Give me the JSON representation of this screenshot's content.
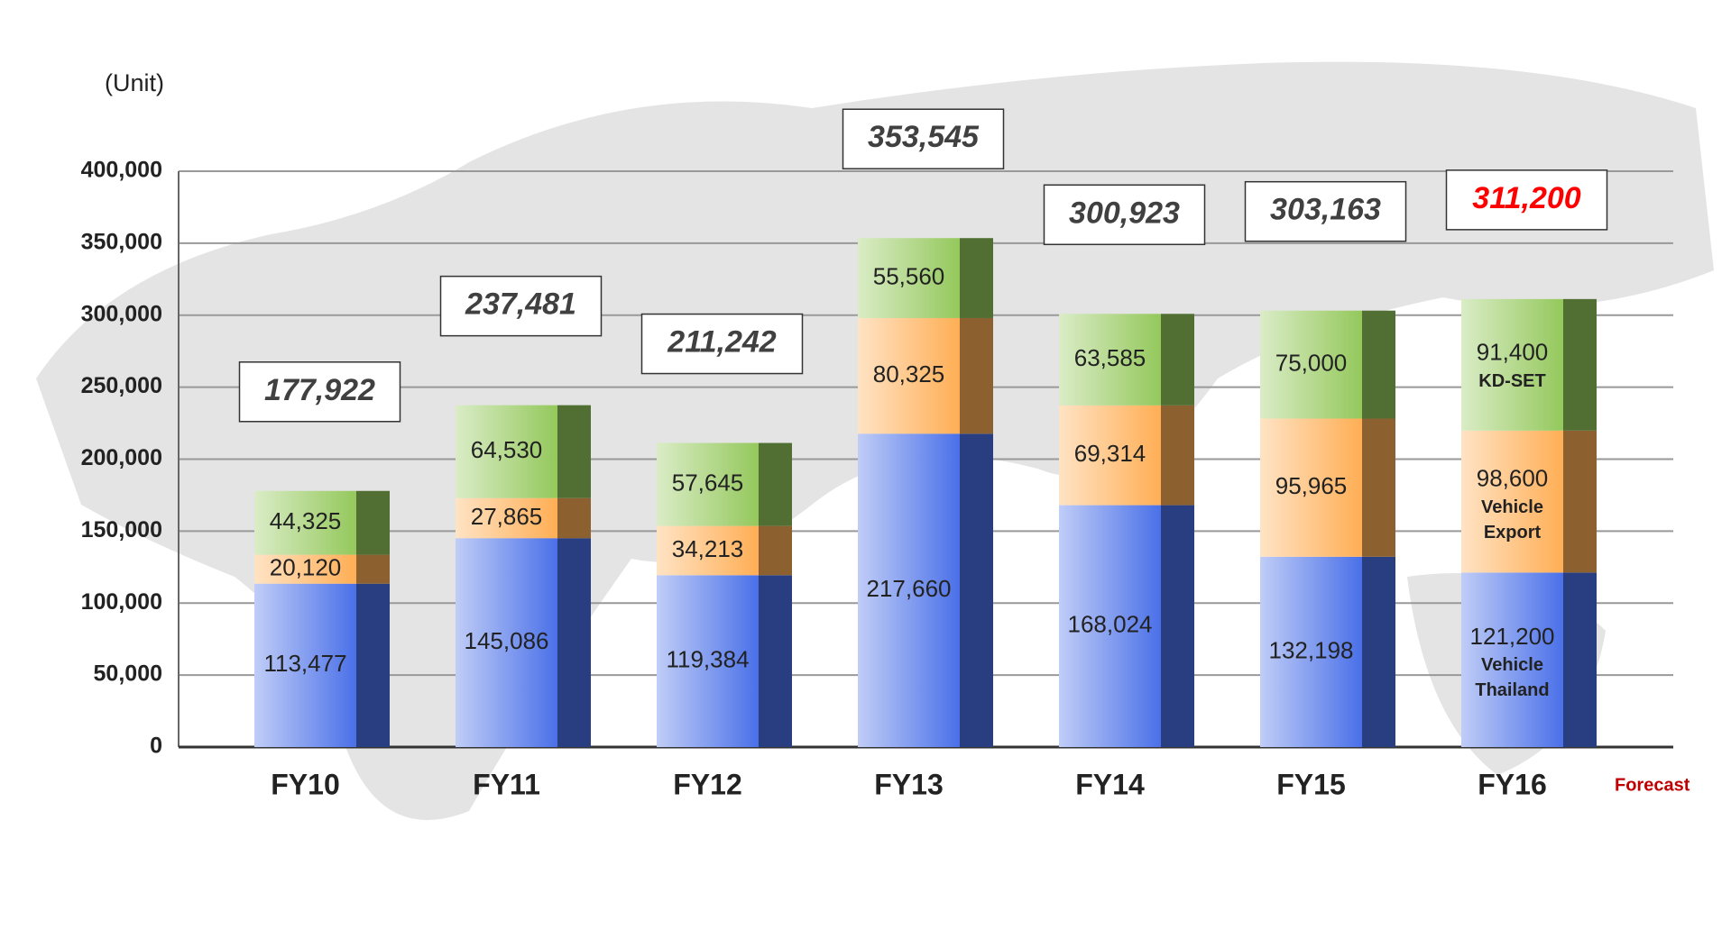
{
  "chart_data": {
    "type": "bar",
    "stacked": true,
    "y_label": "(Unit)",
    "annotation": "Forecast",
    "categories": [
      "FY10",
      "FY11",
      "FY12",
      "FY13",
      "FY14",
      "FY15",
      "FY16"
    ],
    "series": [
      {
        "name": "Vehicle Thailand",
        "color": "#4a70e8",
        "values": [
          113477,
          145086,
          119384,
          217660,
          168024,
          132198,
          121200
        ]
      },
      {
        "name": "Vehicle Export",
        "color": "#ffae55",
        "values": [
          20120,
          27865,
          34213,
          80325,
          69314,
          95965,
          98600
        ]
      },
      {
        "name": "KD-SET",
        "color": "#94c85c",
        "values": [
          44325,
          64530,
          57645,
          55560,
          63585,
          75000,
          91400
        ]
      }
    ],
    "totals": [
      177922,
      237481,
      211242,
      353545,
      300923,
      303163,
      311200
    ],
    "total_label_colors": [
      "#404040",
      "#404040",
      "#404040",
      "#404040",
      "#404040",
      "#404040",
      "#ff0000"
    ],
    "ylim": [
      0,
      400000
    ],
    "yticks": [
      {
        "value": 0,
        "label": "0"
      },
      {
        "value": 50000,
        "label": "50,000"
      },
      {
        "value": 100000,
        "label": "100,000"
      },
      {
        "value": 150000,
        "label": "150,000"
      },
      {
        "value": 200000,
        "label": "200,000"
      },
      {
        "value": 250000,
        "label": "250,000"
      },
      {
        "value": 300000,
        "label": "300,000"
      },
      {
        "value": 350000,
        "label": "350,000"
      },
      {
        "value": 400000,
        "label": "400,000"
      }
    ],
    "grid": true
  }
}
